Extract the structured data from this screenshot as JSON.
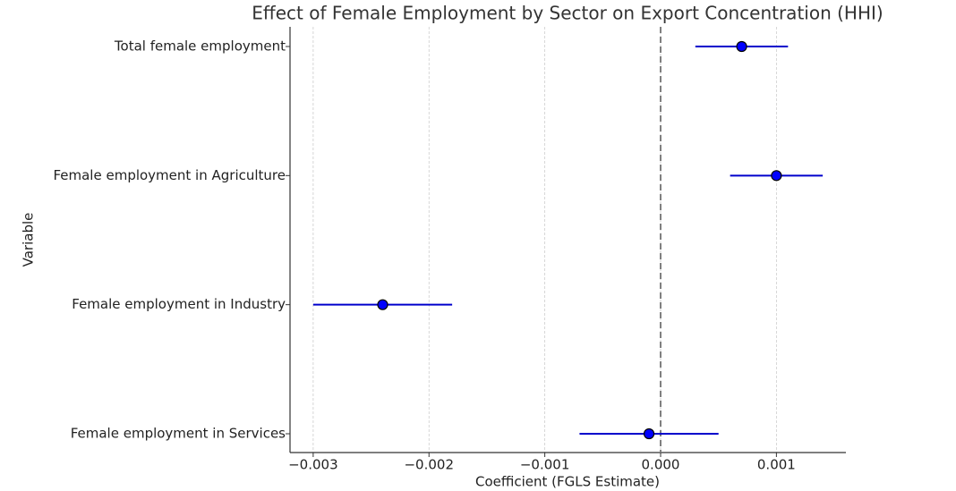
{
  "chart_data": {
    "type": "errorbar-h",
    "title": "Effect of Female Employment by Sector on Export Concentration (HHI)",
    "x_label": "Coefficient (FGLS Estimate)",
    "y_label": "Variable",
    "categories": [
      "Total female employment",
      "Female employment in Agriculture",
      "Female employment in Industry",
      "Female employment in Services"
    ],
    "values": [
      0.0007,
      0.001,
      -0.0024,
      -0.0001
    ],
    "errors": [
      0.0004,
      0.0004,
      0.0006,
      0.0006
    ],
    "color": "#0000cc",
    "marker_color": "#0000ff",
    "reference_line": 0,
    "xlim": [
      -0.0032,
      0.0016
    ],
    "xticks": [
      {
        "value": -0.003,
        "label": "−0.003"
      },
      {
        "value": -0.002,
        "label": "−0.002"
      },
      {
        "value": -0.001,
        "label": "−0.001"
      },
      {
        "value": 0,
        "label": "0.000"
      },
      0.001
    ],
    "grid": true
  }
}
